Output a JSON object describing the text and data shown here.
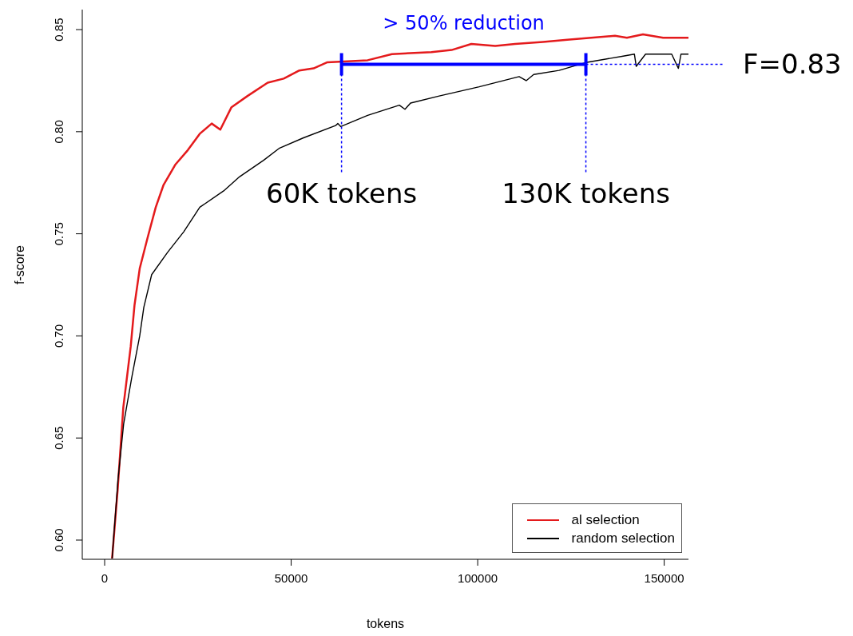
{
  "chart_data": {
    "type": "line",
    "xlabel": "tokens",
    "ylabel": "f-score",
    "xlim": [
      -6000,
      156500
    ],
    "xticks": [
      0,
      50000,
      100000,
      150000
    ],
    "ylim": [
      0.5906,
      0.8598
    ],
    "yticks": [
      {
        "value": 0.6,
        "label": "0.60"
      },
      {
        "value": 0.65,
        "label": "0.65"
      },
      {
        "value": 0.7,
        "label": "0.70"
      },
      {
        "value": 0.75,
        "label": "0.75"
      },
      {
        "value": 0.8,
        "label": "0.80"
      },
      {
        "value": 0.85,
        "label": "0.85"
      }
    ],
    "series": [
      {
        "name": "al selection",
        "color": "#e41a1c",
        "x": [
          2000,
          3500,
          5000,
          7000,
          8000,
          9400,
          11500,
          13700,
          15800,
          19000,
          22300,
          25500,
          28700,
          31000,
          34000,
          38300,
          43700,
          48000,
          52200,
          56000,
          59700,
          70500,
          77000,
          87600,
          93000,
          98300,
          104700,
          110000,
          117500,
          124000,
          130400,
          136800,
          140000,
          144300,
          149700,
          156500
        ],
        "values": [
          0.591,
          0.625,
          0.665,
          0.695,
          0.715,
          0.733,
          0.748,
          0.763,
          0.774,
          0.784,
          0.791,
          0.799,
          0.804,
          0.801,
          0.812,
          0.8175,
          0.824,
          0.826,
          0.83,
          0.831,
          0.834,
          0.835,
          0.838,
          0.839,
          0.84,
          0.843,
          0.842,
          0.843,
          0.844,
          0.845,
          0.846,
          0.847,
          0.846,
          0.8477,
          0.846,
          0.846
        ]
      },
      {
        "name": "random selection",
        "color": "#000000",
        "x": [
          2000,
          3600,
          5100,
          7300,
          9400,
          10500,
          12600,
          16900,
          21200,
          25500,
          31900,
          36200,
          42600,
          46900,
          53300,
          61900,
          62500,
          63300,
          70500,
          79000,
          80500,
          82000,
          89700,
          100400,
          111100,
          113000,
          115000,
          121800,
          129300,
          139000,
          142000,
          142500,
          145000,
          152000,
          153800,
          154500,
          156500
        ],
        "values": [
          0.591,
          0.63,
          0.657,
          0.68,
          0.7,
          0.714,
          0.73,
          0.741,
          0.751,
          0.763,
          0.771,
          0.778,
          0.786,
          0.792,
          0.797,
          0.803,
          0.804,
          0.8025,
          0.808,
          0.813,
          0.811,
          0.814,
          0.8175,
          0.822,
          0.827,
          0.825,
          0.828,
          0.83,
          0.834,
          0.837,
          0.838,
          0.832,
          0.838,
          0.838,
          0.831,
          0.838,
          0.838
        ]
      }
    ],
    "legend": "bottom right",
    "marker": "none",
    "line_style": "solid",
    "grid": false,
    "ref_lines": [
      {
        "axis": "y",
        "value": 0.833,
        "label": "F=0.83",
        "color": "#0000ff",
        "line_style": "dotted"
      },
      {
        "axis": "x",
        "value": 63500,
        "color": "#0000ff",
        "line_style": "dotted"
      },
      {
        "axis": "x",
        "value": 129000,
        "color": "#0000ff",
        "line_style": "dotted"
      }
    ],
    "annotations": [
      "> 50% reduction",
      {
        "text": "60K tokens",
        "x": 63500,
        "y": 0.78
      },
      {
        "text": "130K tokens",
        "x": 129000,
        "y": 0.78
      }
    ]
  }
}
